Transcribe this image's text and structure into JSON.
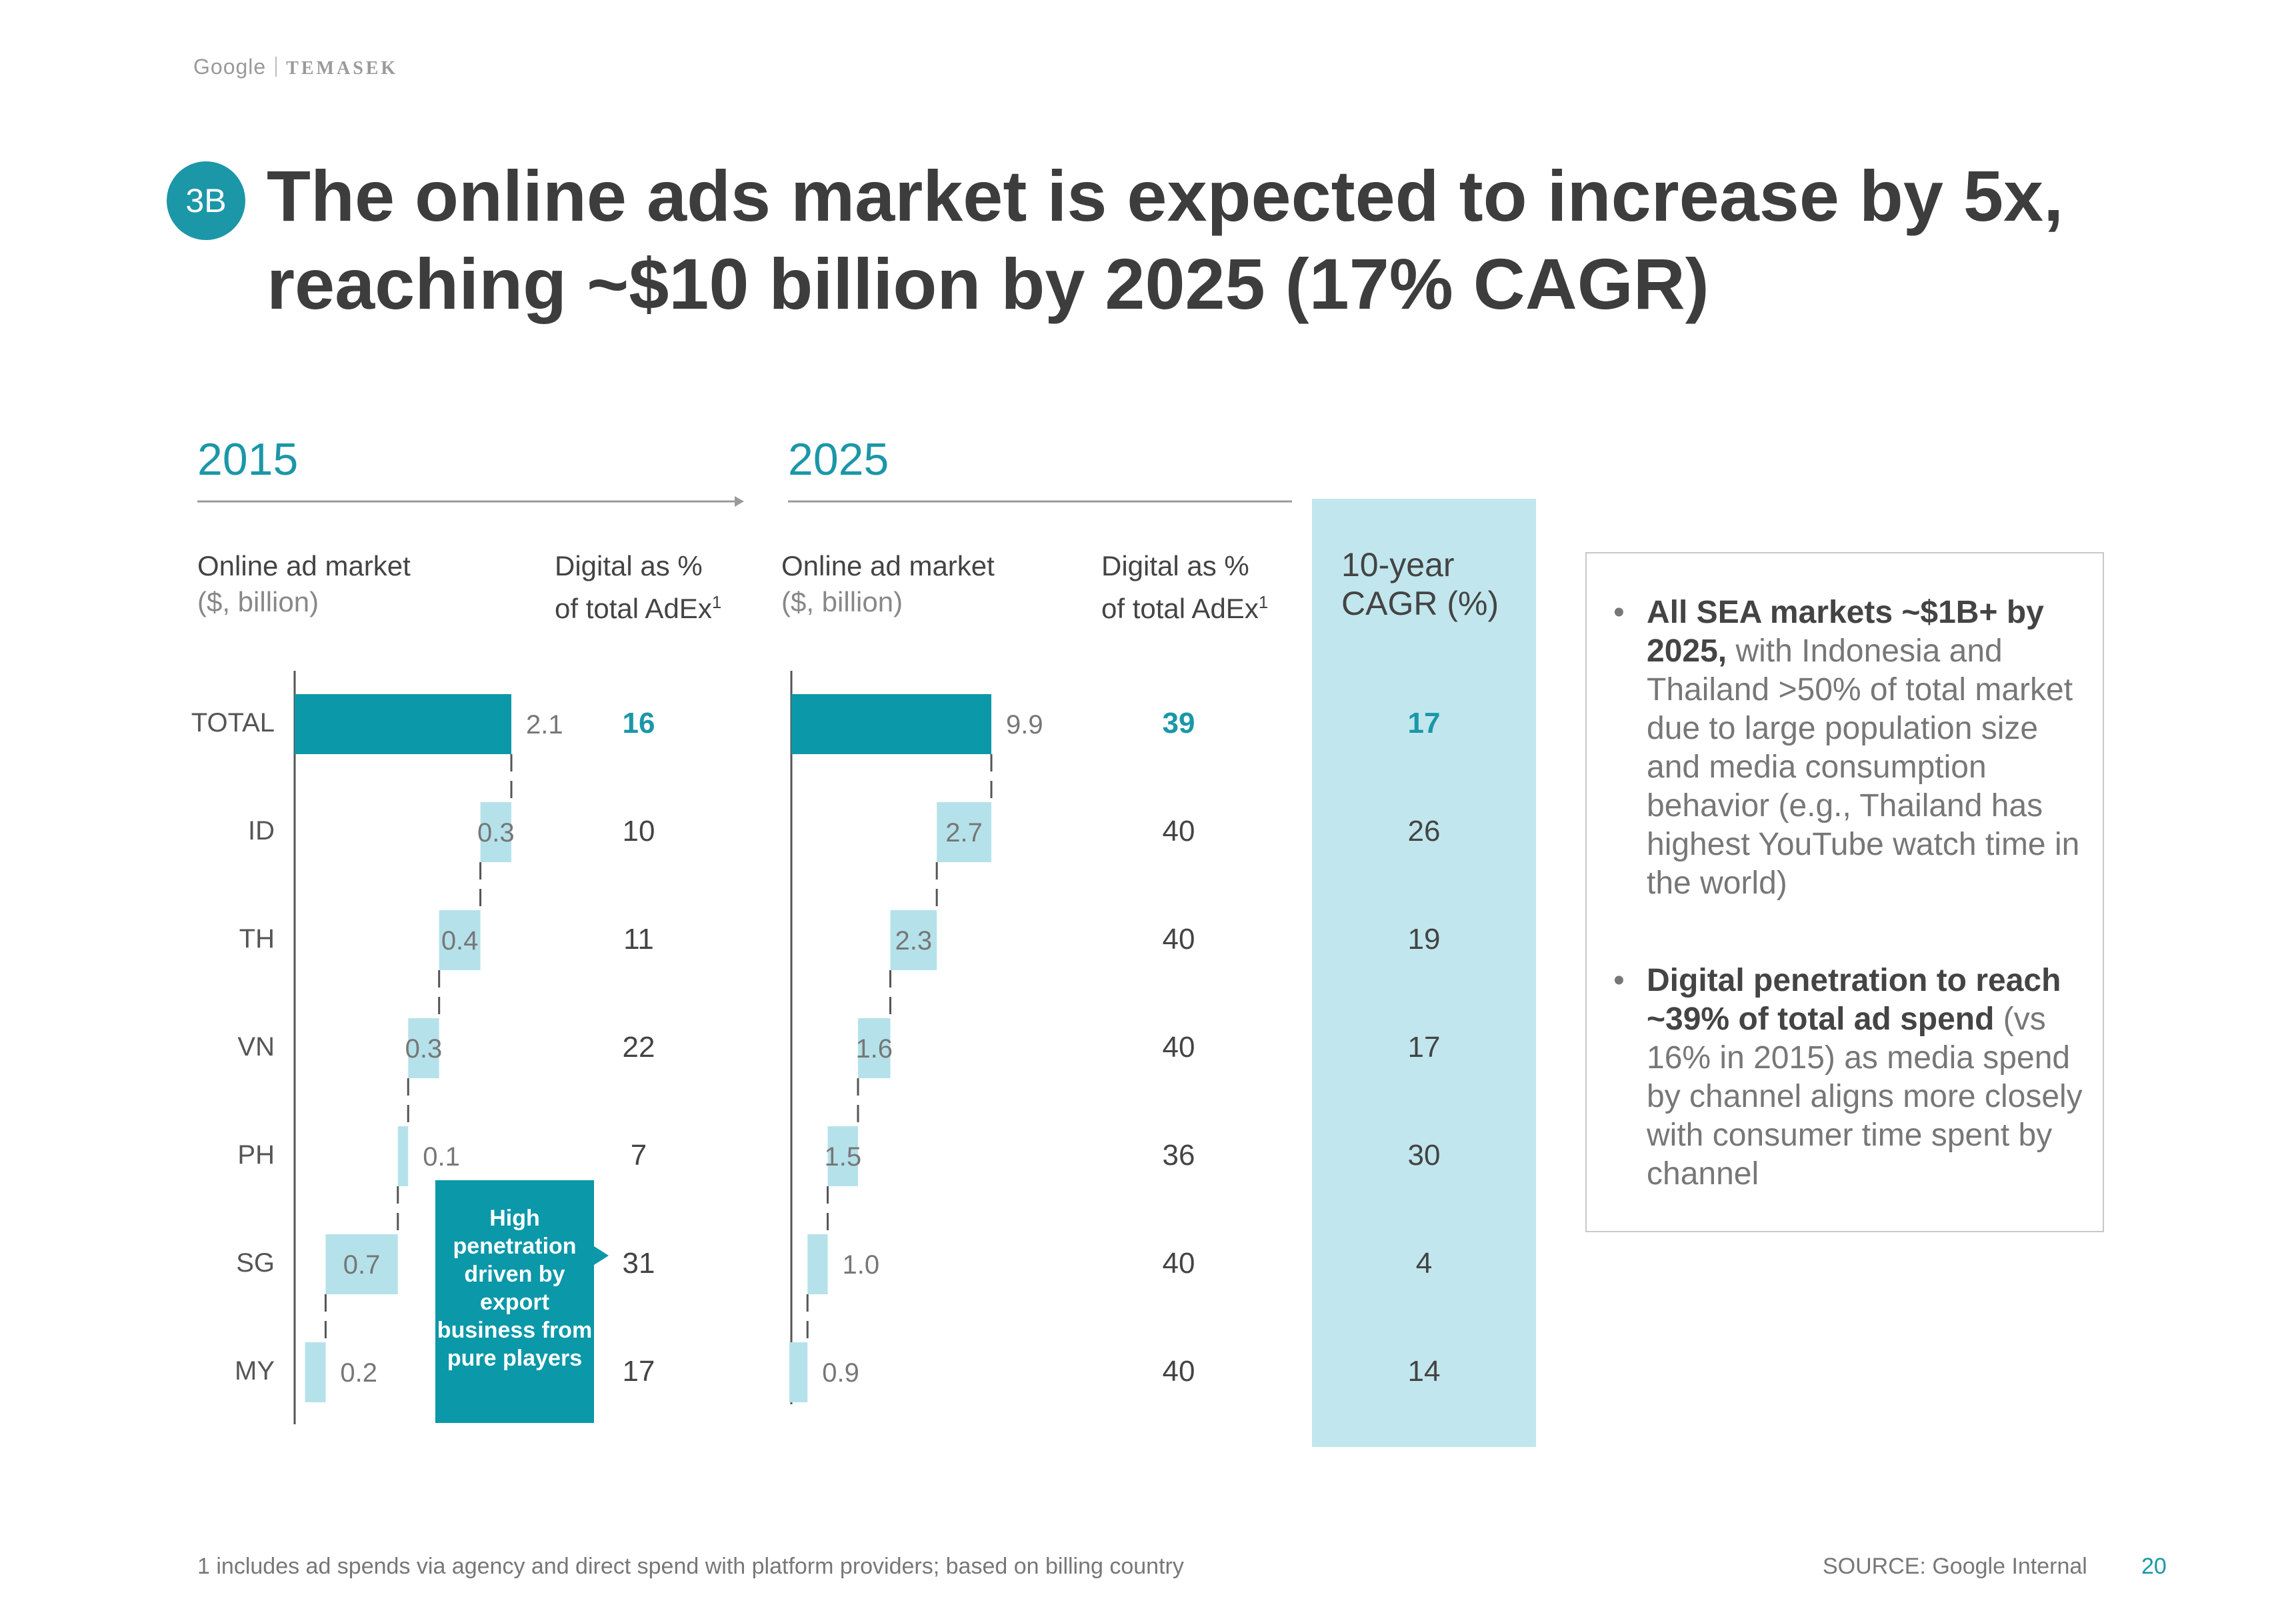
{
  "header": {
    "brand_left": "Google",
    "brand_right": "TEMASEK"
  },
  "badge": "3B",
  "title_line1": "The online ads market is expected to increase by 5x,",
  "title_line2": "reaching ~$10 billion by 2025 (17% CAGR)",
  "col_headers": {
    "market_label": "Online ad market",
    "market_unit": "($, billion)",
    "digital_line1": "Digital as %",
    "digital_line2": "of total AdEx",
    "digital_sup": "1",
    "cagr_line1": "10-year",
    "cagr_line2": "CAGR (%)"
  },
  "chart_data": [
    {
      "type": "bar",
      "subtype": "waterfall",
      "title": "2015",
      "ylabel": "Online ad market ($, billion)",
      "categories": [
        "TOTAL",
        "ID",
        "TH",
        "VN",
        "PH",
        "SG",
        "MY"
      ],
      "values": [
        2.1,
        0.3,
        0.4,
        0.3,
        0.1,
        0.7,
        0.2
      ],
      "labels": [
        "2.1",
        "0.3",
        "0.4",
        "0.3",
        "0.1",
        "0.7",
        "0.2"
      ],
      "digital_share_pct": [
        16,
        10,
        11,
        22,
        7,
        31,
        17
      ]
    },
    {
      "type": "bar",
      "subtype": "waterfall",
      "title": "2025",
      "ylabel": "Online ad market ($, billion)",
      "categories": [
        "TOTAL",
        "ID",
        "TH",
        "VN",
        "PH",
        "SG",
        "MY"
      ],
      "values": [
        9.9,
        2.7,
        2.3,
        1.6,
        1.5,
        1.0,
        0.9
      ],
      "labels": [
        "9.9",
        "2.7",
        "2.3",
        "1.6",
        "1.5",
        "1.0",
        "0.9"
      ],
      "digital_share_pct": [
        39,
        40,
        40,
        40,
        36,
        40,
        40
      ],
      "cagr_10yr_pct": [
        17,
        26,
        19,
        17,
        30,
        4,
        14
      ]
    }
  ],
  "callout": "High penetration driven by export business from pure players",
  "bullets": [
    {
      "bold": "All SEA markets ~$1B+ by 2025,",
      "text": " with Indonesia and Thailand >50% of total market due to large population size and media consumption behavior (e.g., Thailand has highest YouTube watch time in the world)"
    },
    {
      "bold": "Digital penetration to reach ~39% of total ad spend",
      "text": " (vs 16% in 2015) as media spend by channel aligns more closely with consumer time spent by channel"
    }
  ],
  "bullet_symbol": "•",
  "footnote": "1 includes ad spends via agency and direct spend with platform providers; based on billing country",
  "source": "SOURCE: Google Internal",
  "page_number": "20",
  "colors": {
    "teal": "#1b97a8",
    "dark_teal": "#0b98a8",
    "light_teal": "#c1e6ed",
    "bar_light": "#b5e2ea",
    "text": "#444444"
  }
}
